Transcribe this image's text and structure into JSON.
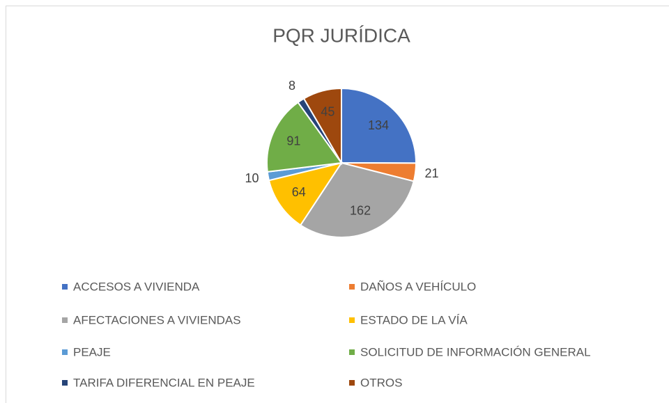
{
  "chart_data": {
    "type": "pie",
    "title": "PQR JURÍDICA",
    "categories": [
      "ACCESOS A VIVIENDA",
      "DAÑOS A VEHÍCULO",
      "AFECTACIONES A VIVIENDAS",
      "ESTADO DE LA VÍA",
      "PEAJE",
      "SOLICITUD DE INFORMACIÓN GENERAL",
      "TARIFA DIFERENCIAL EN PEAJE",
      "OTROS"
    ],
    "values": [
      134,
      21,
      162,
      64,
      10,
      91,
      8,
      45
    ],
    "colors": [
      "#4472c4",
      "#ed7d31",
      "#a5a5a5",
      "#ffc000",
      "#5b9bd5",
      "#70ad47",
      "#264478",
      "#9e480e"
    ],
    "legend": "bottom"
  }
}
